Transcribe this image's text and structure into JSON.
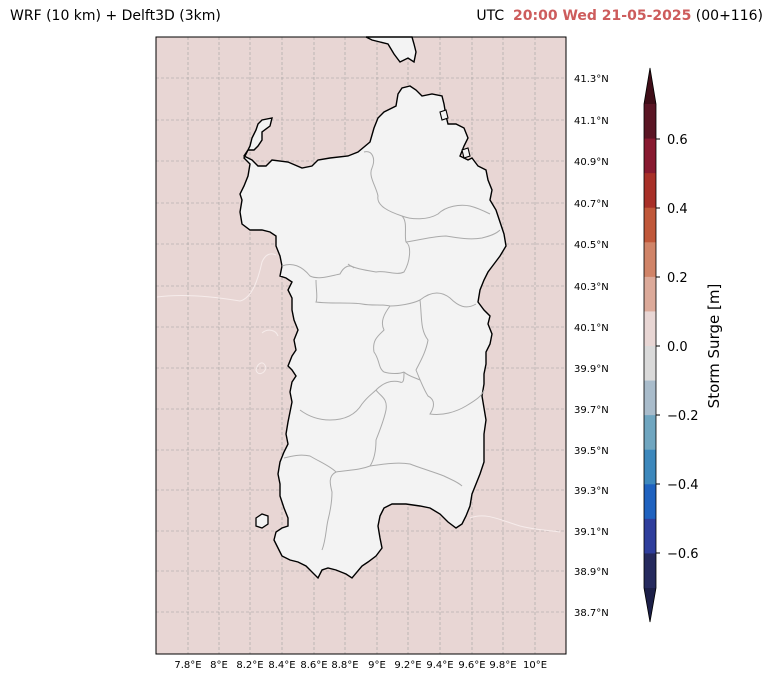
{
  "header": {
    "title_left": "WRF (10 km) + Delft3D (3km)",
    "utc_label": "UTC",
    "datetime": "20:00 Wed 21-05-2025",
    "forecast_step": "(00+116)"
  },
  "map": {
    "lat_labels": [
      "41.3°N",
      "41.1°N",
      "40.9°N",
      "40.7°N",
      "40.5°N",
      "40.3°N",
      "40.1°N",
      "39.9°N",
      "39.7°N",
      "39.5°N",
      "39.3°N",
      "39.1°N",
      "38.9°N",
      "38.7°N"
    ],
    "lon_labels": [
      "7.8°E",
      "8°E",
      "8.2°E",
      "8.4°E",
      "8.6°E",
      "8.8°E",
      "9°E",
      "9.2°E",
      "9.4°E",
      "9.6°E",
      "9.8°E",
      "10°E"
    ],
    "sea_color": "#e8d6d4",
    "land_color": "#f3f3f3"
  },
  "colorbar": {
    "label": "Storm Surge [m]",
    "ticks": [
      "0.6",
      "0.4",
      "0.2",
      "0.0",
      "−0.2",
      "−0.4",
      "−0.6"
    ],
    "colors_top_to_bottom": [
      "#5a1524",
      "#881a30",
      "#a83028",
      "#c0583a",
      "#d08468",
      "#dcaa9a",
      "#e8d6d4",
      "#dadada",
      "#a9bccb",
      "#70a6c0",
      "#3d88bc",
      "#1f62bf",
      "#2f3e9c",
      "#262a5e"
    ],
    "top_extend_color": "#3f0e18",
    "bottom_extend_color": "#1c1f48"
  }
}
